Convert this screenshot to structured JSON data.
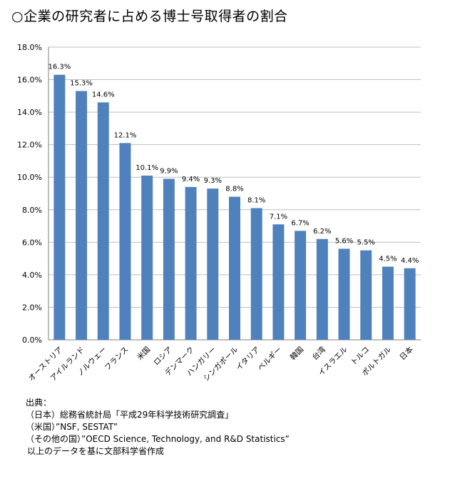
{
  "title": "○企業の研究者に占める博士号取得者の割合",
  "chart_data": {
    "type": "bar",
    "categories": [
      "オーストリア",
      "アイルランド",
      "ノルウェー",
      "フランス",
      "米国",
      "ロシア",
      "デンマーク",
      "ハンガリー",
      "シンガポール",
      "イタリア",
      "ベルギー",
      "韓国",
      "台湾",
      "イスラエル",
      "トルコ",
      "ポルトガル",
      "日本"
    ],
    "values": [
      16.3,
      15.3,
      14.6,
      12.1,
      10.1,
      9.9,
      9.4,
      9.3,
      8.8,
      8.1,
      7.1,
      6.7,
      6.2,
      5.6,
      5.5,
      4.5,
      4.4
    ],
    "value_labels": [
      "16.3%",
      "15.3%",
      "14.6%",
      "12.1%",
      "10.1%",
      "9.9%",
      "9.4%",
      "9.3%",
      "8.8%",
      "8.1%",
      "7.1%",
      "6.7%",
      "6.2%",
      "5.6%",
      "5.5%",
      "4.5%",
      "4.4%"
    ],
    "ylim": [
      0,
      18
    ],
    "yticks": [
      0,
      2,
      4,
      6,
      8,
      10,
      12,
      14,
      16,
      18
    ],
    "ytick_labels": [
      "0.0%",
      "2.0%",
      "4.0%",
      "6.0%",
      "8.0%",
      "10.0%",
      "12.0%",
      "14.0%",
      "16.0%",
      "18.0%"
    ],
    "grid": true,
    "bar_color": "#4F81BD",
    "grid_color": "#bfbfbf",
    "xlabel": "",
    "ylabel": ""
  },
  "source": {
    "heading": "出典：",
    "lines": [
      "（日本）総務省統計局「平成29年科学技術研究調査」",
      "（米国）”NSF, SESTAT”",
      "（その他の国）”OECD Science, Technology, and R&D Statistics”"
    ],
    "footer": "以上のデータを基に文部科学省作成"
  }
}
